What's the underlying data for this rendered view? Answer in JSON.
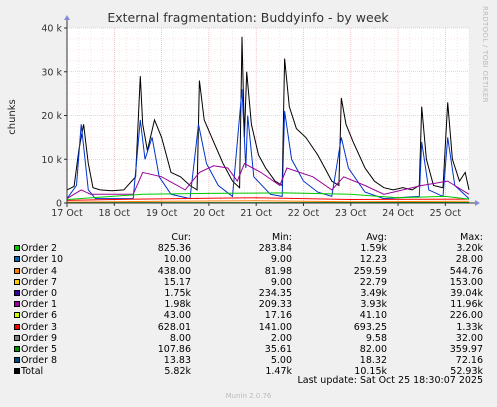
{
  "chart_data": {
    "type": "line",
    "title": "External fragmentation: Buddyinfo - by week",
    "ylabel": "chunks",
    "ylim": [
      0,
      40000
    ],
    "yticks": [
      {
        "v": 0,
        "label": "0"
      },
      {
        "v": 10000,
        "label": "10 k"
      },
      {
        "v": 20000,
        "label": "20 k"
      },
      {
        "v": 30000,
        "label": "30 k"
      },
      {
        "v": 40000,
        "label": "40 k"
      }
    ],
    "xrange": [
      0,
      8.5
    ],
    "xticks": [
      {
        "v": 0,
        "label": "17 Oct"
      },
      {
        "v": 1,
        "label": "18 Oct"
      },
      {
        "v": 2,
        "label": "19 Oct"
      },
      {
        "v": 3,
        "label": "20 Oct"
      },
      {
        "v": 4,
        "label": "21 Oct"
      },
      {
        "v": 5,
        "label": "22 Oct"
      },
      {
        "v": 6,
        "label": "23 Oct"
      },
      {
        "v": 7,
        "label": "24 Oct"
      },
      {
        "v": 8,
        "label": "25 Oct"
      }
    ],
    "grid": true,
    "series": [
      {
        "name": "Total",
        "color": "#000000",
        "points": [
          [
            0,
            3000
          ],
          [
            0.15,
            3800
          ],
          [
            0.25,
            12000
          ],
          [
            0.35,
            18000
          ],
          [
            0.45,
            9000
          ],
          [
            0.55,
            3500
          ],
          [
            0.7,
            3000
          ],
          [
            0.95,
            2800
          ],
          [
            1.2,
            3000
          ],
          [
            1.45,
            6000
          ],
          [
            1.55,
            29000
          ],
          [
            1.6,
            18000
          ],
          [
            1.7,
            12000
          ],
          [
            1.85,
            19000
          ],
          [
            2,
            15000
          ],
          [
            2.1,
            11000
          ],
          [
            2.2,
            7000
          ],
          [
            2.4,
            6000
          ],
          [
            2.6,
            4000
          ],
          [
            2.75,
            3000
          ],
          [
            2.8,
            28000
          ],
          [
            2.9,
            19000
          ],
          [
            3.1,
            14000
          ],
          [
            3.3,
            9000
          ],
          [
            3.5,
            5000
          ],
          [
            3.65,
            3500
          ],
          [
            3.7,
            38000
          ],
          [
            3.75,
            15000
          ],
          [
            3.8,
            30000
          ],
          [
            3.9,
            18000
          ],
          [
            4.05,
            11000
          ],
          [
            4.2,
            8000
          ],
          [
            4.4,
            5000
          ],
          [
            4.55,
            4000
          ],
          [
            4.6,
            33000
          ],
          [
            4.7,
            22000
          ],
          [
            4.85,
            17000
          ],
          [
            5.05,
            15000
          ],
          [
            5.3,
            11000
          ],
          [
            5.45,
            8000
          ],
          [
            5.6,
            5000
          ],
          [
            5.75,
            4000
          ],
          [
            5.8,
            24000
          ],
          [
            5.9,
            18000
          ],
          [
            6.05,
            14000
          ],
          [
            6.3,
            8000
          ],
          [
            6.5,
            5000
          ],
          [
            6.7,
            3500
          ],
          [
            6.9,
            3000
          ],
          [
            7.1,
            3500
          ],
          [
            7.3,
            3000
          ],
          [
            7.45,
            4000
          ],
          [
            7.5,
            22000
          ],
          [
            7.6,
            10000
          ],
          [
            7.75,
            4000
          ],
          [
            7.95,
            3500
          ],
          [
            8.05,
            23000
          ],
          [
            8.15,
            10000
          ],
          [
            8.3,
            5000
          ],
          [
            8.42,
            7000
          ],
          [
            8.5,
            3000
          ]
        ]
      },
      {
        "name": "Order 0",
        "color": "#0033cc",
        "points": [
          [
            0,
            1000
          ],
          [
            0.2,
            4000
          ],
          [
            0.3,
            18000
          ],
          [
            0.35,
            13000
          ],
          [
            0.45,
            3000
          ],
          [
            0.6,
            1000
          ],
          [
            1.4,
            1000
          ],
          [
            1.55,
            19000
          ],
          [
            1.65,
            10000
          ],
          [
            1.8,
            15000
          ],
          [
            1.95,
            6000
          ],
          [
            2.2,
            2000
          ],
          [
            2.6,
            1000
          ],
          [
            2.78,
            18000
          ],
          [
            2.95,
            9000
          ],
          [
            3.2,
            4000
          ],
          [
            3.5,
            1500
          ],
          [
            3.7,
            26000
          ],
          [
            3.78,
            8000
          ],
          [
            3.82,
            20000
          ],
          [
            3.95,
            6000
          ],
          [
            4.3,
            2000
          ],
          [
            4.55,
            1500
          ],
          [
            4.6,
            21000
          ],
          [
            4.75,
            10000
          ],
          [
            5,
            5000
          ],
          [
            5.3,
            2500
          ],
          [
            5.6,
            1500
          ],
          [
            5.8,
            15000
          ],
          [
            5.95,
            8000
          ],
          [
            6.3,
            2500
          ],
          [
            6.7,
            1000
          ],
          [
            7.45,
            1500
          ],
          [
            7.5,
            14000
          ],
          [
            7.65,
            3000
          ],
          [
            7.95,
            1500
          ],
          [
            8.05,
            15000
          ],
          [
            8.2,
            4000
          ],
          [
            8.5,
            1000
          ]
        ]
      },
      {
        "name": "Order 1",
        "color": "#990099",
        "points": [
          [
            0,
            1000
          ],
          [
            0.3,
            3000
          ],
          [
            0.5,
            2000
          ],
          [
            1.4,
            2000
          ],
          [
            1.6,
            7000
          ],
          [
            2,
            6000
          ],
          [
            2.5,
            3000
          ],
          [
            2.8,
            7000
          ],
          [
            3.1,
            8500
          ],
          [
            3.4,
            8000
          ],
          [
            3.6,
            5000
          ],
          [
            3.75,
            9000
          ],
          [
            4.1,
            7000
          ],
          [
            4.5,
            4000
          ],
          [
            4.65,
            8000
          ],
          [
            5.2,
            6000
          ],
          [
            5.6,
            3000
          ],
          [
            5.85,
            6000
          ],
          [
            6.3,
            4000
          ],
          [
            6.7,
            2000
          ],
          [
            7.5,
            4000
          ],
          [
            8.05,
            5000
          ],
          [
            8.5,
            2000
          ]
        ]
      },
      {
        "name": "Order 4",
        "color": "#ff8000",
        "points": [
          [
            0,
            200
          ],
          [
            2,
            400
          ],
          [
            4,
            500
          ],
          [
            6,
            300
          ],
          [
            8.5,
            400
          ]
        ]
      },
      {
        "name": "Order 3",
        "color": "#ff0000",
        "points": [
          [
            0,
            600
          ],
          [
            1.5,
            900
          ],
          [
            3,
            1100
          ],
          [
            4,
            1200
          ],
          [
            6,
            800
          ],
          [
            8.5,
            900
          ]
        ]
      },
      {
        "name": "Order 2",
        "color": "#00cc00",
        "points": [
          [
            0,
            800
          ],
          [
            1.6,
            2000
          ],
          [
            3,
            2200
          ],
          [
            4.6,
            2300
          ],
          [
            6,
            2000
          ],
          [
            7,
            1200
          ],
          [
            8,
            1500
          ],
          [
            8.5,
            900
          ]
        ]
      },
      {
        "name": "Order 5",
        "color": "#009900",
        "points": [
          [
            0,
            80
          ],
          [
            8.5,
            120
          ]
        ]
      }
    ]
  },
  "legend": {
    "headers": {
      "cur": "Cur:",
      "min": "Min:",
      "avg": "Avg:",
      "max": "Max:"
    },
    "rows": [
      {
        "name": "Order 2",
        "color": "#00cc00",
        "cur": "825.36",
        "min": "283.84",
        "avg": "1.59k",
        "max": "3.20k"
      },
      {
        "name": "Order 10",
        "color": "#0066b3",
        "cur": "10.00",
        "min": "9.00",
        "avg": "12.23",
        "max": "28.00"
      },
      {
        "name": "Order 4",
        "color": "#ff8000",
        "cur": "438.00",
        "min": "81.98",
        "avg": "259.59",
        "max": "544.76"
      },
      {
        "name": "Order 7",
        "color": "#ffcc00",
        "cur": "15.17",
        "min": "9.00",
        "avg": "22.79",
        "max": "153.00"
      },
      {
        "name": "Order 0",
        "color": "#330099",
        "cur": "1.75k",
        "min": "234.35",
        "avg": "3.49k",
        "max": "39.04k"
      },
      {
        "name": "Order 1",
        "color": "#990099",
        "cur": "1.98k",
        "min": "209.33",
        "avg": "3.93k",
        "max": "11.96k"
      },
      {
        "name": "Order 6",
        "color": "#ccff00",
        "cur": "43.00",
        "min": "17.16",
        "avg": "41.10",
        "max": "226.00"
      },
      {
        "name": "Order 3",
        "color": "#ff0000",
        "cur": "628.01",
        "min": "141.00",
        "avg": "693.25",
        "max": "1.33k"
      },
      {
        "name": "Order 9",
        "color": "#808080",
        "cur": "8.00",
        "min": "2.00",
        "avg": "9.58",
        "max": "32.00"
      },
      {
        "name": "Order 5",
        "color": "#008f00",
        "cur": "107.86",
        "min": "35.61",
        "avg": "82.00",
        "max": "359.97"
      },
      {
        "name": "Order 8",
        "color": "#00487d",
        "cur": "13.83",
        "min": "5.00",
        "avg": "18.32",
        "max": "72.16"
      },
      {
        "name": "Total",
        "color": "#000000",
        "cur": "5.82k",
        "min": "1.47k",
        "avg": "10.15k",
        "max": "52.93k"
      }
    ]
  },
  "last_update": "Last update: Sat Oct 25 18:30:07 2025",
  "footer": "Munin 2.0.76",
  "watermark": "RRDTOOL / TOBI OETIKER"
}
